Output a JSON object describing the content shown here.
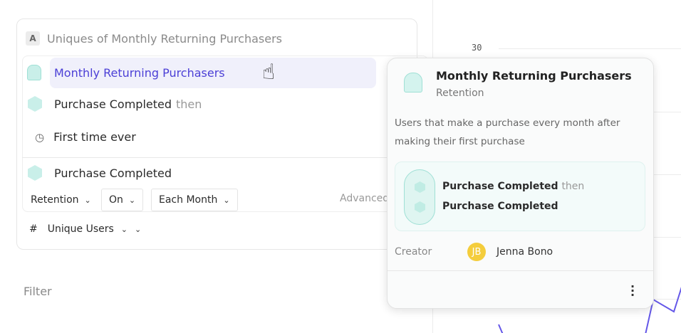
{
  "chart": {
    "ytick": "30",
    "line_color": "#6457e8"
  },
  "query": {
    "badge": "A",
    "title": "Uniques of Monthly Returning Purchasers",
    "cohort": "Monthly Returning Purchasers",
    "event1": "Purchase Completed",
    "then": "then",
    "time": "First time ever",
    "event2": "Purchase Completed",
    "retention": "Retention",
    "on": "On",
    "each_month": "Each Month",
    "advanced": "Advanced",
    "measure_symbol": "#",
    "measure": "Unique Users"
  },
  "filter_label": "Filter",
  "popover": {
    "title": "Monthly Returning Purchasers",
    "subtitle": "Retention",
    "description": "Users that make a purchase every month after making their first purchase",
    "step1": "Purchase Completed",
    "then": "then",
    "step2": "Purchase Completed",
    "creator_label": "Creator",
    "creator_initials": "JB",
    "creator_name": "Jenna Bono",
    "avatar_color": "#f4cd3c"
  },
  "accent": "#4b3fd6"
}
